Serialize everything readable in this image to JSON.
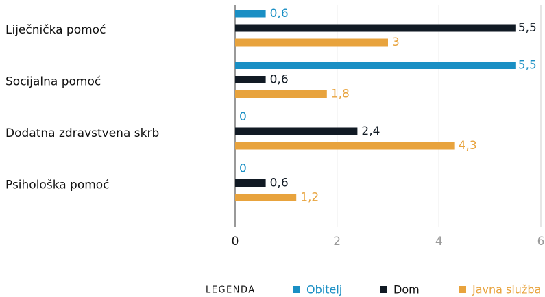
{
  "chart_data": {
    "type": "barh",
    "categories": [
      "Liječnička pomoć",
      "Socijalna pomoć",
      "Dodatna zdravstvena skrb",
      "Psihološka pomoć"
    ],
    "series": [
      {
        "name": "Obitelj",
        "color": "#1a8fc4",
        "values": [
          0.6,
          5.5,
          0,
          0
        ],
        "value_labels": [
          "0,6",
          "5,5",
          "0",
          "0"
        ]
      },
      {
        "name": "Dom",
        "color": "#111a24",
        "values": [
          5.5,
          0.6,
          2.4,
          0.6
        ],
        "value_labels": [
          "5,5",
          "0,6",
          "2,4",
          "0,6"
        ]
      },
      {
        "name": "Javna služba",
        "color": "#e8a33d",
        "values": [
          3,
          1.8,
          4.3,
          1.2
        ],
        "value_labels": [
          "3",
          "1,8",
          "4,3",
          "1,2"
        ]
      }
    ],
    "xlim": [
      0,
      6
    ],
    "xticks": [
      0,
      2,
      4,
      6
    ],
    "grid": true,
    "legend_title": "LEGENDA",
    "legend": "bottom"
  }
}
